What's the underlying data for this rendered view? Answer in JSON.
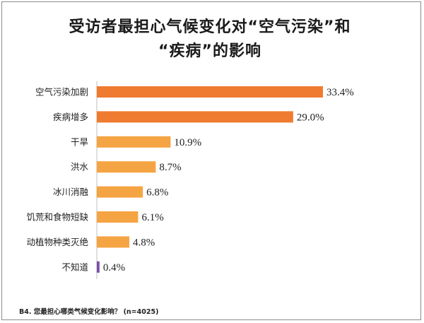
{
  "title_line1": "受访者最担心气候变化对“空气污染”和",
  "title_line2": "“疾病”的影响",
  "footnote": "B4. 您最担心哪类气候变化影响？ (n=4025)",
  "colors": {
    "dark": "#ef7b30",
    "light": "#f5a443",
    "purple": "#7a4fa8"
  },
  "chart_data": {
    "type": "bar",
    "orientation": "horizontal",
    "categories": [
      "空气污染加剧",
      "疾病增多",
      "干旱",
      "洪水",
      "冰川消融",
      "饥荒和食物短缺",
      "动植物种类灭绝",
      "不知道"
    ],
    "values": [
      33.4,
      29.0,
      10.9,
      8.7,
      6.8,
      6.1,
      4.8,
      0.4
    ],
    "labels": [
      "33.4%",
      "29.0%",
      "10.9%",
      "8.7%",
      "6.8%",
      "6.1%",
      "4.8%",
      "0.4%"
    ],
    "bar_colors": [
      "dark",
      "dark",
      "light",
      "light",
      "light",
      "light",
      "light",
      "purple"
    ],
    "xlim": [
      0,
      35
    ],
    "title": "受访者最担心气候变化对“空气污染”和“疾病”的影响"
  }
}
